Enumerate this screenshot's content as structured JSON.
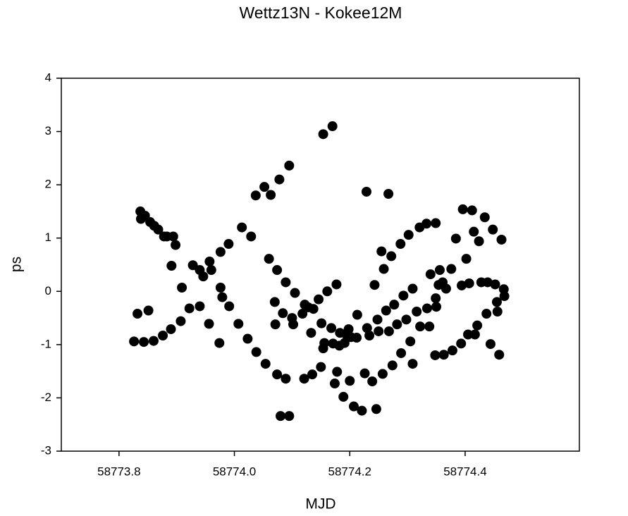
{
  "chart_data": {
    "type": "scatter",
    "title": "Wettz13N - Kokee12M",
    "x_label": "MJD",
    "y_label": "ps",
    "color": "#000000",
    "xlim": [
      58773.7,
      58774.598
    ],
    "ylim": [
      -3,
      4
    ],
    "xticks": [
      58773.8,
      {
        "value": 58774.0,
        "label": "58774.0"
      },
      58774.2,
      58774.4
    ],
    "yticks": [
      -3,
      -2,
      -1,
      0,
      1,
      2,
      3,
      4
    ],
    "x": [
      58773.826,
      58773.832,
      58773.837,
      58773.838,
      58773.843,
      58773.845,
      58773.851,
      58773.854,
      58773.86,
      58773.861,
      58773.868,
      58773.876,
      58773.878,
      58773.883,
      58773.89,
      58773.891,
      58773.894,
      58773.898,
      58773.907,
      58773.909,
      58773.922,
      58773.928,
      58773.94,
      58773.94,
      58773.946,
      58773.956,
      58773.957,
      58773.96,
      58773.974,
      58773.976,
      58773.976,
      58773.979,
      58773.991,
      58773.99,
      58774.007,
      58774.013,
      58774.023,
      58774.029,
      58774.038,
      58774.037,
      58774.054,
      58774.052,
      58774.06,
      58774.063,
      58774.07,
      58774.071,
      58774.074,
      58774.074,
      58774.078,
      58774.08,
      58774.084,
      58774.089,
      58774.089,
      58774.095,
      58774.095,
      58774.1,
      58774.102,
      58774.105,
      58774.118,
      58774.121,
      58774.122,
      58774.128,
      58774.133,
      58774.137,
      58774.135,
      58774.146,
      58774.15,
      58774.151,
      58774.154,
      58774.154,
      58774.156,
      58774.161,
      58774.168,
      58774.17,
      58774.171,
      58774.174,
      58774.177,
      58774.178,
      58774.182,
      58774.183,
      58774.189,
      58774.191,
      58774.194,
      58774.198,
      58774.2,
      58774.202,
      58774.207,
      58774.212,
      58774.213,
      58774.221,
      58774.226,
      58774.229,
      58774.23,
      58774.234,
      58774.239,
      58774.243,
      58774.246,
      58774.248,
      58774.25,
      58774.255,
      58774.257,
      58774.259,
      58774.263,
      58774.267,
      58774.268,
      58774.272,
      58774.274,
      58774.277,
      58774.282,
      58774.288,
      58774.289,
      58774.293,
      58774.298,
      58774.302,
      58774.305,
      58774.309,
      58774.309,
      58774.316,
      58774.321,
      58774.322,
      58774.333,
      58774.334,
      58774.338,
      58774.34,
      58774.348,
      58774.349,
      58774.349,
      58774.35,
      58774.354,
      58774.356,
      58774.361,
      58774.363,
      58774.367,
      58774.376,
      58774.378,
      58774.384,
      58774.393,
      58774.394,
      58774.396,
      58774.402,
      58774.405,
      58774.407,
      58774.412,
      58774.415,
      58774.417,
      58774.421,
      58774.424,
      58774.428,
      58774.434,
      58774.437,
      58774.439,
      58774.444,
      58774.448,
      58774.452,
      58774.455,
      58774.456,
      58774.459,
      58774.463,
      58774.467,
      58774.468
    ],
    "values": [
      -0.94,
      -0.42,
      1.5,
      1.36,
      -0.95,
      1.42,
      -0.36,
      1.3,
      -0.93,
      1.23,
      1.16,
      -0.83,
      1.03,
      1.03,
      -0.71,
      0.48,
      1.03,
      0.87,
      -0.56,
      0.07,
      -0.32,
      0.49,
      -0.28,
      0.4,
      0.28,
      -0.61,
      0.56,
      0.4,
      -0.97,
      0.07,
      0.74,
      -0.11,
      -0.28,
      0.89,
      -0.61,
      1.2,
      -0.89,
      1.03,
      -1.14,
      1.8,
      -1.36,
      1.96,
      0.61,
      1.81,
      -0.2,
      -0.62,
      0.4,
      -1.56,
      2.1,
      -2.34,
      -0.41,
      0.17,
      -1.64,
      2.36,
      -2.34,
      -0.5,
      -0.62,
      -0.03,
      -0.42,
      -1.64,
      -0.25,
      -0.3,
      -0.78,
      -0.33,
      -1.56,
      -0.15,
      -1.42,
      -0.6,
      2.95,
      -1.07,
      -0.97,
      0,
      -0.69,
      3.1,
      -0.98,
      -1.73,
      0.13,
      -1.51,
      -1.02,
      -0.78,
      -1.98,
      -0.97,
      -0.81,
      -0.71,
      -1.68,
      -0.86,
      -2.16,
      -0.87,
      -0.44,
      -2.24,
      -1.54,
      1.87,
      -0.69,
      -0.83,
      -1.69,
      0.12,
      -2.21,
      -0.53,
      -0.75,
      0.75,
      -1.55,
      0.42,
      -0.36,
      1.83,
      -0.75,
      0.66,
      -1.39,
      -0.25,
      -0.62,
      0.89,
      -1.16,
      -0.08,
      -0.53,
      1.06,
      -0.94,
      0.05,
      -1.36,
      -0.38,
      1.2,
      -0.66,
      1.27,
      -0.32,
      -0.66,
      0.32,
      -1.2,
      -0.13,
      1.28,
      -0.29,
      0.12,
      0.4,
      0.17,
      -1.19,
      0.05,
      0.42,
      -1.11,
      0.99,
      -0.98,
      0.11,
      1.54,
      0.61,
      -0.81,
      0.15,
      1.52,
      1.12,
      -0.81,
      -0.64,
      0.94,
      0.17,
      1.39,
      -0.42,
      0.17,
      -0.99,
      1.16,
      0.13,
      -0.2,
      -0.38,
      -1.19,
      0.97,
      0.04,
      -0.09
    ]
  }
}
